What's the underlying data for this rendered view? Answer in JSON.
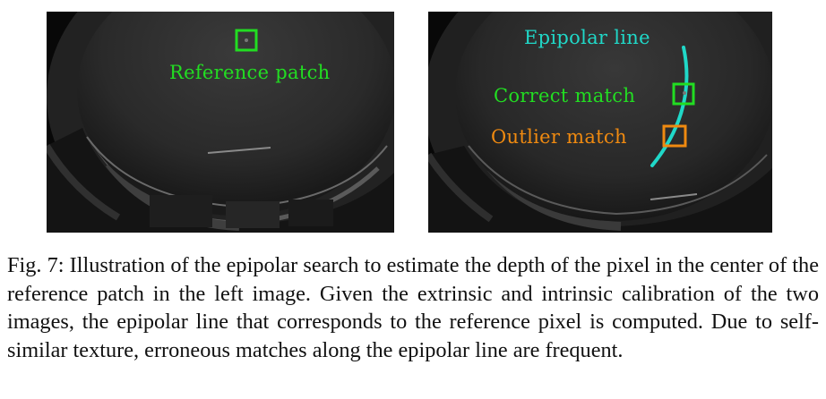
{
  "figure": {
    "left_image": {
      "labels": {
        "reference_patch": "Reference patch"
      }
    },
    "right_image": {
      "labels": {
        "epipolar_line": "Epipolar line",
        "correct_match": "Correct match",
        "outlier_match": "Outlier match"
      }
    },
    "colors": {
      "green": "#22dd22",
      "cyan": "#20d8c8",
      "orange": "#f08a10"
    },
    "caption": "Fig. 7: Illustration of the epipolar search to estimate the depth of the pixel in the center of the reference patch in the left image. Given the extrinsic and intrinsic calibration of the two images, the epipolar line that corresponds to the reference pixel is computed. Due to self-similar texture, erroneous matches along the epipolar line are frequent."
  }
}
